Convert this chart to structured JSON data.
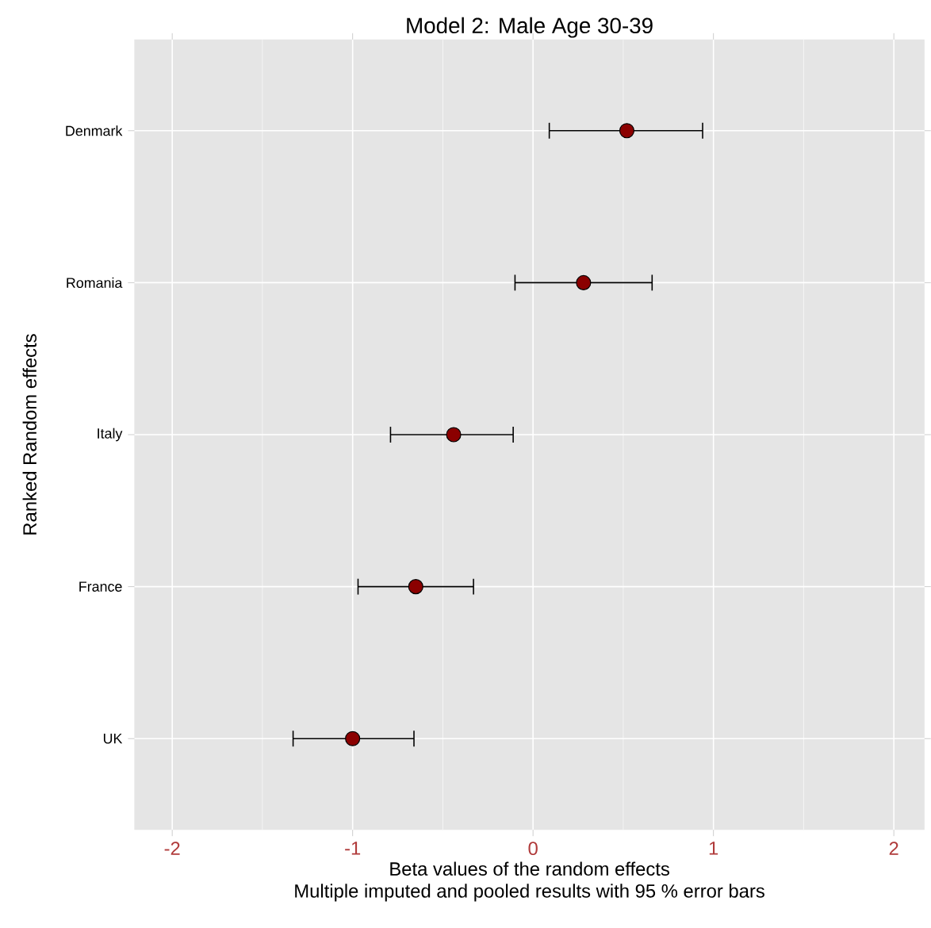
{
  "chart_data": {
    "type": "scatter",
    "orientation": "horizontal",
    "title": "Model 2: Male Age 30-39",
    "xlabel": "Beta values of the random effects\nMultiple imputed and pooled results with 95 % error bars",
    "ylabel": "Ranked Random effects",
    "categories": [
      "Denmark",
      "Romania",
      "Italy",
      "France",
      "UK"
    ],
    "values": [
      0.52,
      0.28,
      -0.44,
      -0.65,
      -1.0
    ],
    "errors": [
      [
        0.09,
        0.94
      ],
      [
        -0.1,
        0.66
      ],
      [
        -0.79,
        -0.11
      ],
      [
        -0.97,
        -0.33
      ],
      [
        -1.33,
        -0.66
      ]
    ],
    "color": "#8b0000",
    "marker": "circle",
    "xlim": [
      -2.21,
      2.17
    ],
    "xticks": [
      -2,
      -1,
      0,
      1,
      2
    ],
    "grid": true
  }
}
